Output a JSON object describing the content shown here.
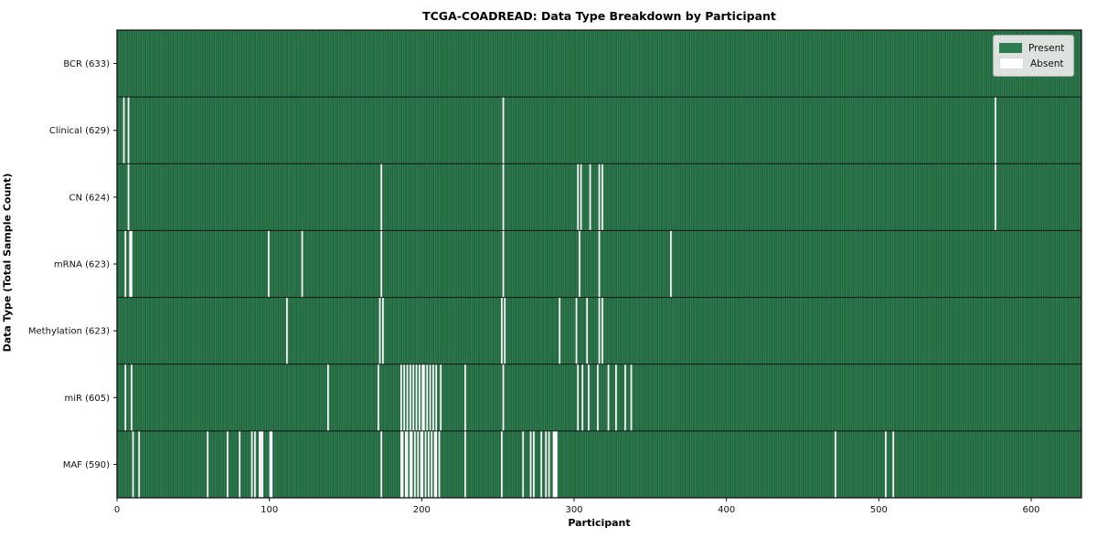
{
  "figure": {
    "title": "TCGA-COADREAD: Data Type Breakdown by Participant",
    "xlabel": "Participant",
    "ylabel": "Data Type (Total Sample Count)"
  },
  "chart_data": {
    "type": "heatmap",
    "title": "TCGA-COADREAD: Data Type Breakdown by Participant",
    "xlabel": "Participant",
    "ylabel": "Data Type (Total Sample Count)",
    "n_participants": 633,
    "x_ticks": [
      0,
      100,
      200,
      300,
      400,
      500,
      600
    ],
    "grid": false,
    "legend_position": "upper right",
    "colors": {
      "present": "#2e7d50",
      "present_edge": "#1d5434",
      "absent": "#ffffff",
      "axis": "#111111"
    },
    "legend": [
      {
        "label": "Present",
        "color": "#2e7d50"
      },
      {
        "label": "Absent",
        "color": "#ffffff"
      }
    ],
    "rows": [
      {
        "label": "BCR (633)",
        "total": 633,
        "absent": []
      },
      {
        "label": "Clinical (629)",
        "total": 629,
        "absent": [
          4,
          7,
          253,
          576
        ]
      },
      {
        "label": "CN (624)",
        "total": 624,
        "absent": [
          7,
          173,
          253,
          302,
          304,
          310,
          316,
          318,
          576
        ]
      },
      {
        "label": "mRNA (623)",
        "total": 623,
        "absent": [
          5,
          8,
          9,
          99,
          121,
          173,
          253,
          303,
          316,
          363
        ]
      },
      {
        "label": "Methylation (623)",
        "total": 623,
        "absent": [
          111,
          172,
          174,
          252,
          254,
          290,
          301,
          308,
          316,
          318
        ]
      },
      {
        "label": "miR (605)",
        "total": 605,
        "absent": [
          5,
          9,
          138,
          171,
          186,
          188,
          190,
          192,
          194,
          196,
          198,
          200,
          201,
          203,
          205,
          207,
          209,
          212,
          228,
          253,
          302,
          305,
          309,
          315,
          322,
          327,
          333,
          337
        ]
      },
      {
        "label": "MAF (590)",
        "total": 590,
        "absent": [
          10,
          14,
          59,
          72,
          80,
          88,
          90,
          93,
          94,
          95,
          100,
          101,
          173,
          186,
          187,
          189,
          190,
          192,
          193,
          195,
          197,
          199,
          200,
          202,
          204,
          206,
          208,
          209,
          211,
          228,
          252,
          266,
          271,
          273,
          278,
          281,
          283,
          286,
          287,
          288,
          471,
          504,
          509
        ]
      }
    ]
  }
}
